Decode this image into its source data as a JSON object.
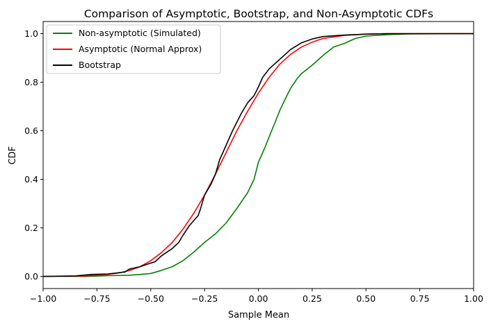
{
  "chart_data": {
    "type": "line",
    "title": "Comparison of Asymptotic, Bootstrap, and Non-Asymptotic CDFs",
    "xlabel": "Sample Mean",
    "ylabel": "CDF",
    "xlim": [
      -1.0,
      1.0
    ],
    "ylim": [
      -0.05,
      1.05
    ],
    "xticks": [
      -1.0,
      -0.75,
      -0.5,
      -0.25,
      0.0,
      0.25,
      0.5,
      0.75,
      1.0
    ],
    "xtick_labels": [
      "−1.00",
      "−0.75",
      "−0.50",
      "−0.25",
      "0.00",
      "0.25",
      "0.50",
      "0.75",
      "1.00"
    ],
    "yticks": [
      0.0,
      0.2,
      0.4,
      0.6,
      0.8,
      1.0
    ],
    "ytick_labels": [
      "0.0",
      "0.2",
      "0.4",
      "0.6",
      "0.8",
      "1.0"
    ],
    "grid": false,
    "legend_position": "top-left",
    "series": [
      {
        "name": "Non-asymptotic (Simulated)",
        "color": "#008000",
        "points": [
          [
            -1.0,
            0.0
          ],
          [
            -0.8,
            0.0
          ],
          [
            -0.7,
            0.003
          ],
          [
            -0.6,
            0.005
          ],
          [
            -0.55,
            0.008
          ],
          [
            -0.5,
            0.012
          ],
          [
            -0.45,
            0.025
          ],
          [
            -0.4,
            0.04
          ],
          [
            -0.35,
            0.065
          ],
          [
            -0.3,
            0.1
          ],
          [
            -0.25,
            0.14
          ],
          [
            -0.2,
            0.175
          ],
          [
            -0.15,
            0.22
          ],
          [
            -0.1,
            0.28
          ],
          [
            -0.05,
            0.345
          ],
          [
            -0.02,
            0.4
          ],
          [
            0.0,
            0.47
          ],
          [
            0.03,
            0.53
          ],
          [
            0.05,
            0.575
          ],
          [
            0.08,
            0.64
          ],
          [
            0.1,
            0.685
          ],
          [
            0.13,
            0.74
          ],
          [
            0.15,
            0.775
          ],
          [
            0.18,
            0.815
          ],
          [
            0.2,
            0.835
          ],
          [
            0.25,
            0.87
          ],
          [
            0.3,
            0.91
          ],
          [
            0.35,
            0.945
          ],
          [
            0.4,
            0.96
          ],
          [
            0.45,
            0.98
          ],
          [
            0.5,
            0.99
          ],
          [
            0.6,
            0.996
          ],
          [
            0.7,
            0.999
          ],
          [
            1.0,
            1.0
          ]
        ]
      },
      {
        "name": "Asymptotic (Normal Approx)",
        "color": "#ff0000",
        "points": [
          [
            -1.0,
            0.0
          ],
          [
            -0.8,
            0.002
          ],
          [
            -0.7,
            0.008
          ],
          [
            -0.65,
            0.014
          ],
          [
            -0.6,
            0.024
          ],
          [
            -0.55,
            0.04
          ],
          [
            -0.5,
            0.065
          ],
          [
            -0.45,
            0.098
          ],
          [
            -0.4,
            0.14
          ],
          [
            -0.35,
            0.195
          ],
          [
            -0.3,
            0.26
          ],
          [
            -0.25,
            0.335
          ],
          [
            -0.2,
            0.42
          ],
          [
            -0.15,
            0.51
          ],
          [
            -0.1,
            0.6
          ],
          [
            -0.05,
            0.68
          ],
          [
            0.0,
            0.755
          ],
          [
            0.05,
            0.82
          ],
          [
            0.1,
            0.875
          ],
          [
            0.15,
            0.915
          ],
          [
            0.2,
            0.945
          ],
          [
            0.25,
            0.965
          ],
          [
            0.3,
            0.98
          ],
          [
            0.4,
            0.993
          ],
          [
            0.5,
            0.998
          ],
          [
            0.6,
            1.0
          ],
          [
            1.0,
            1.0
          ]
        ]
      },
      {
        "name": "Bootstrap",
        "color": "#000000",
        "points": [
          [
            -1.0,
            0.0
          ],
          [
            -0.85,
            0.002
          ],
          [
            -0.78,
            0.008
          ],
          [
            -0.7,
            0.01
          ],
          [
            -0.62,
            0.018
          ],
          [
            -0.6,
            0.03
          ],
          [
            -0.55,
            0.04
          ],
          [
            -0.5,
            0.055
          ],
          [
            -0.48,
            0.06
          ],
          [
            -0.45,
            0.085
          ],
          [
            -0.4,
            0.115
          ],
          [
            -0.37,
            0.14
          ],
          [
            -0.35,
            0.17
          ],
          [
            -0.32,
            0.21
          ],
          [
            -0.28,
            0.25
          ],
          [
            -0.27,
            0.275
          ],
          [
            -0.25,
            0.335
          ],
          [
            -0.22,
            0.38
          ],
          [
            -0.2,
            0.42
          ],
          [
            -0.18,
            0.48
          ],
          [
            -0.15,
            0.54
          ],
          [
            -0.12,
            0.6
          ],
          [
            -0.08,
            0.67
          ],
          [
            -0.05,
            0.715
          ],
          [
            -0.02,
            0.745
          ],
          [
            0.0,
            0.78
          ],
          [
            0.02,
            0.82
          ],
          [
            0.05,
            0.855
          ],
          [
            0.1,
            0.895
          ],
          [
            0.15,
            0.935
          ],
          [
            0.2,
            0.962
          ],
          [
            0.25,
            0.978
          ],
          [
            0.3,
            0.988
          ],
          [
            0.4,
            0.994
          ],
          [
            0.5,
            0.998
          ],
          [
            0.6,
            1.0
          ],
          [
            1.0,
            1.0
          ]
        ]
      }
    ]
  }
}
